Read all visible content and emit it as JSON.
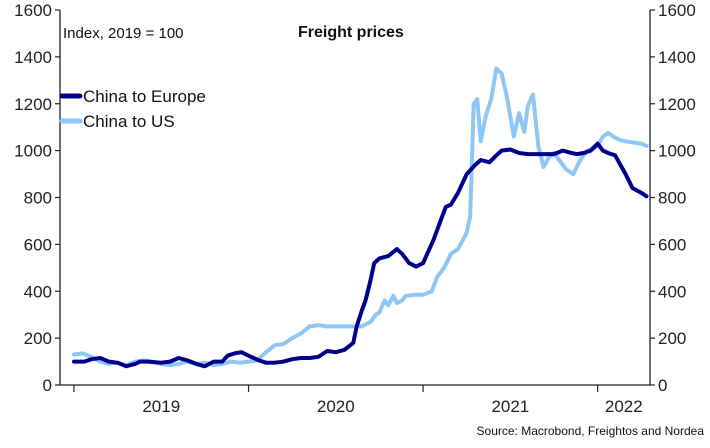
{
  "chart_data": {
    "type": "line",
    "title": "Freight prices",
    "subtitle": "Index, 2019 = 100",
    "source": "Source: Macrobond, Freightos and Nordea",
    "ylim": [
      0,
      1600
    ],
    "yticks": [
      "0",
      "200",
      "400",
      "600",
      "800",
      "1000",
      "1200",
      "1400",
      "1600"
    ],
    "ytick_values": [
      0,
      200,
      400,
      600,
      800,
      1000,
      1200,
      1400,
      1600
    ],
    "right_axis": true,
    "xlim": [
      2018.92,
      2022.3
    ],
    "xticks": [
      2019,
      2020,
      2021,
      2022
    ],
    "xtick_labels": [
      "2019",
      "2020",
      "2021",
      "2022"
    ],
    "grid": false,
    "legend_position": "upper-left",
    "colors": {
      "china_to_europe": "#00008b",
      "china_to_us": "#8ec6f5"
    },
    "series": [
      {
        "name": "China to Europe",
        "x": [
          2019.0,
          2019.06,
          2019.1,
          2019.15,
          2019.2,
          2019.25,
          2019.3,
          2019.35,
          2019.38,
          2019.42,
          2019.5,
          2019.55,
          2019.6,
          2019.65,
          2019.7,
          2019.75,
          2019.8,
          2019.85,
          2019.88,
          2019.92,
          2019.96,
          2020.0,
          2020.06,
          2020.1,
          2020.15,
          2020.2,
          2020.25,
          2020.3,
          2020.35,
          2020.4,
          2020.45,
          2020.5,
          2020.55,
          2020.6,
          2020.62,
          2020.65,
          2020.67,
          2020.7,
          2020.72,
          2020.75,
          2020.8,
          2020.85,
          2020.88,
          2020.92,
          2020.96,
          2021.0,
          2021.03,
          2021.06,
          2021.1,
          2021.13,
          2021.16,
          2021.2,
          2021.25,
          2021.3,
          2021.33,
          2021.38,
          2021.42,
          2021.45,
          2021.5,
          2021.55,
          2021.6,
          2021.65,
          2021.7,
          2021.75,
          2021.8,
          2021.85,
          2021.88,
          2021.92,
          2021.96,
          2022.0,
          2022.03,
          2022.06,
          2022.1,
          2022.13,
          2022.16,
          2022.2,
          2022.25,
          2022.28
        ],
        "values": [
          100,
          100,
          110,
          115,
          100,
          95,
          80,
          90,
          100,
          100,
          95,
          100,
          115,
          105,
          90,
          80,
          100,
          100,
          125,
          135,
          140,
          125,
          105,
          95,
          95,
          100,
          110,
          115,
          115,
          120,
          145,
          140,
          150,
          180,
          250,
          320,
          360,
          450,
          520,
          540,
          550,
          580,
          560,
          520,
          505,
          520,
          570,
          620,
          700,
          760,
          770,
          820,
          900,
          940,
          960,
          950,
          980,
          1000,
          1005,
          990,
          985,
          985,
          985,
          985,
          1000,
          990,
          985,
          990,
          1000,
          1030,
          1000,
          990,
          980,
          940,
          900,
          840,
          820,
          805
        ]
      },
      {
        "name": "China to US",
        "x": [
          2019.0,
          2019.05,
          2019.1,
          2019.15,
          2019.2,
          2019.25,
          2019.3,
          2019.35,
          2019.4,
          2019.45,
          2019.5,
          2019.55,
          2019.6,
          2019.65,
          2019.7,
          2019.75,
          2019.8,
          2019.85,
          2019.9,
          2019.95,
          2020.0,
          2020.05,
          2020.1,
          2020.15,
          2020.2,
          2020.25,
          2020.3,
          2020.35,
          2020.4,
          2020.45,
          2020.5,
          2020.55,
          2020.6,
          2020.65,
          2020.7,
          2020.73,
          2020.75,
          2020.78,
          2020.8,
          2020.83,
          2020.85,
          2020.88,
          2020.9,
          2020.95,
          2021.0,
          2021.05,
          2021.08,
          2021.12,
          2021.16,
          2021.2,
          2021.25,
          2021.27,
          2021.29,
          2021.31,
          2021.33,
          2021.36,
          2021.39,
          2021.42,
          2021.45,
          2021.48,
          2021.52,
          2021.55,
          2021.58,
          2021.6,
          2021.63,
          2021.66,
          2021.69,
          2021.72,
          2021.75,
          2021.78,
          2021.82,
          2021.86,
          2021.9,
          2021.94,
          2021.98,
          2022.0,
          2022.03,
          2022.06,
          2022.1,
          2022.13,
          2022.16,
          2022.2,
          2022.25,
          2022.28
        ],
        "values": [
          130,
          135,
          120,
          100,
          90,
          95,
          85,
          100,
          105,
          100,
          90,
          85,
          90,
          100,
          90,
          95,
          85,
          90,
          100,
          95,
          100,
          105,
          140,
          170,
          175,
          200,
          220,
          250,
          255,
          250,
          250,
          250,
          250,
          250,
          270,
          300,
          310,
          360,
          340,
          380,
          350,
          360,
          380,
          385,
          385,
          400,
          460,
          500,
          560,
          580,
          650,
          720,
          1200,
          1220,
          1040,
          1150,
          1220,
          1350,
          1330,
          1230,
          1060,
          1160,
          1080,
          1190,
          1240,
          1020,
          930,
          970,
          990,
          960,
          920,
          900,
          960,
          1000,
          1010,
          1020,
          1060,
          1075,
          1055,
          1045,
          1040,
          1035,
          1030,
          1020
        ]
      }
    ]
  }
}
